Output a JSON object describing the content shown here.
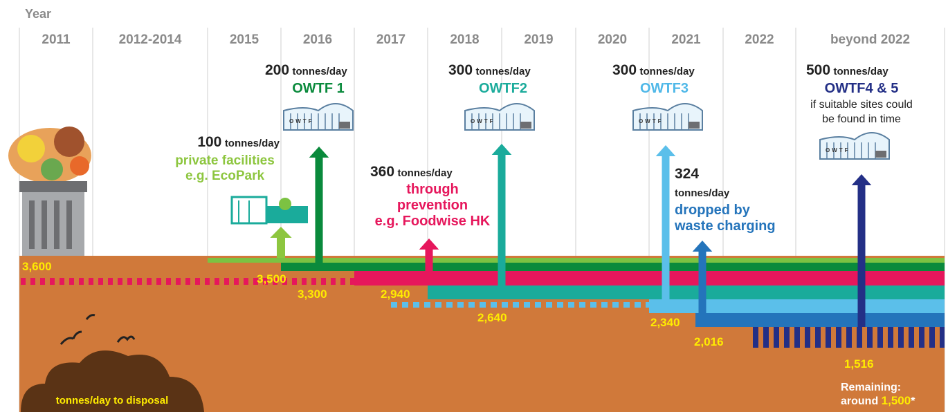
{
  "year_label": "Year",
  "years": [
    "2011",
    "2012-2014",
    "2015",
    "2016",
    "2017",
    "2018",
    "2019",
    "2020",
    "2021",
    "2022",
    "beyond 2022"
  ],
  "milestones": [
    {
      "amount": "100",
      "unit": "tonnes/day",
      "lines": [
        "private facilities",
        "e.g. EcoPark"
      ]
    },
    {
      "amount": "200",
      "unit": "tonnes/day",
      "lines": [
        "OWTF 1"
      ]
    },
    {
      "amount": "360",
      "unit": "tonnes/day",
      "lines": [
        "through",
        "prevention",
        "e.g. Foodwise HK"
      ]
    },
    {
      "amount": "300",
      "unit": "tonnes/day",
      "lines": [
        "OWTF2"
      ]
    },
    {
      "amount": "300",
      "unit": "tonnes/day",
      "lines": [
        "OWTF3"
      ]
    },
    {
      "amount": "324",
      "unit": "tonnes/day",
      "lines": [
        "dropped by",
        "waste charging"
      ]
    },
    {
      "amount": "500",
      "unit": "tonnes/day",
      "lines": [
        "OWTF4 & 5"
      ],
      "note": [
        "if suitable sites could",
        "be found in time"
      ]
    }
  ],
  "levels": [
    "3,600",
    "3,500",
    "3,300",
    "2,940",
    "2,640",
    "2,340",
    "2,016",
    "1,516"
  ],
  "facility_icon_label": "OWTF",
  "disposal_label": "tonnes/day to disposal",
  "remaining": {
    "label": "Remaining:",
    "prefix": "around",
    "value": "1,500",
    "mark": "*"
  }
}
